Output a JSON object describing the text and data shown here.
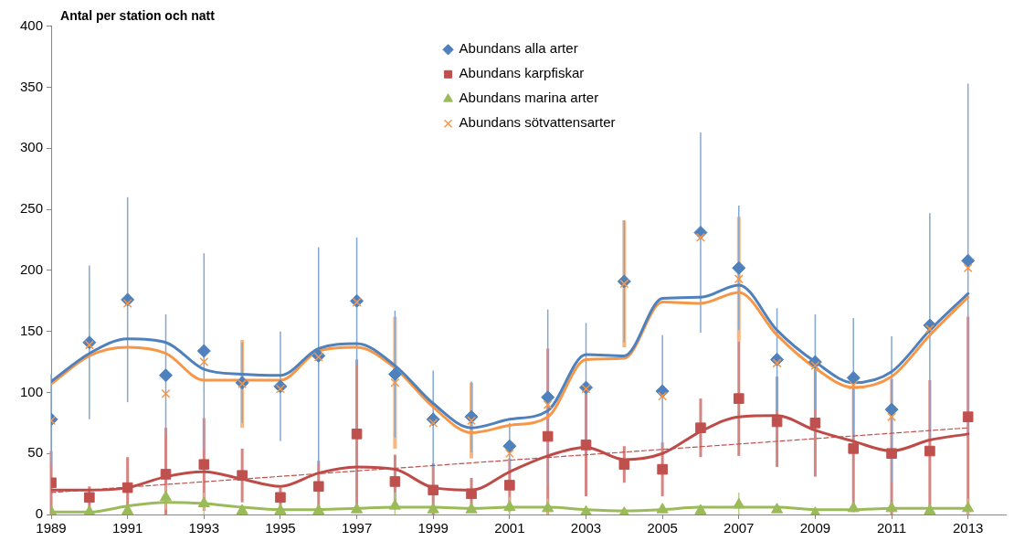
{
  "chart_data": {
    "type": "scatter",
    "title": "Antal per station och natt",
    "x": [
      1989,
      1990,
      1991,
      1992,
      1993,
      1994,
      1995,
      1996,
      1997,
      1998,
      1999,
      2000,
      2001,
      2002,
      2003,
      2004,
      2005,
      2006,
      2007,
      2008,
      2009,
      2010,
      2011,
      2012,
      2013
    ],
    "xlim": [
      1989,
      2014
    ],
    "xticks": [
      1989,
      1991,
      1993,
      1995,
      1997,
      1999,
      2001,
      2003,
      2005,
      2007,
      2009,
      2011,
      2013
    ],
    "ylim": [
      0,
      400
    ],
    "yticks": [
      0,
      50,
      100,
      150,
      200,
      250,
      300,
      350,
      400
    ],
    "legend": "top",
    "series": [
      {
        "name": "Abundans alla arter",
        "color": "#4f81bd",
        "marker": "diamond",
        "values": [
          78,
          141,
          176,
          114,
          134,
          108,
          105,
          130,
          175,
          115,
          78,
          80,
          56,
          96,
          104,
          191,
          101,
          231,
          202,
          127,
          125,
          112,
          86,
          155,
          208
        ],
        "errors": [
          37,
          63,
          84,
          50,
          80,
          33,
          45,
          89,
          52,
          52,
          40,
          29,
          19,
          72,
          53,
          50,
          46,
          82,
          51,
          42,
          39,
          49,
          60,
          92,
          145
        ]
      },
      {
        "name": "Abundans karpfiskar",
        "color": "#c0504d",
        "marker": "square",
        "values": [
          26,
          14,
          22,
          33,
          41,
          32,
          14,
          23,
          66,
          27,
          20,
          17,
          24,
          64,
          57,
          41,
          37,
          71,
          95,
          76,
          75,
          54,
          50,
          52,
          80
        ],
        "errors": [
          26,
          9,
          [
            0,
            47
          ],
          [
            0,
            71
          ],
          38,
          22,
          8,
          21,
          61,
          22,
          [
            0,
            42
          ],
          13,
          22,
          [
            0,
            136
          ],
          42,
          15,
          22,
          24,
          47,
          37,
          44,
          52,
          [
            0,
            111
          ],
          [
            0,
            110
          ],
          [
            0,
            162
          ]
        ]
      },
      {
        "name": "Abundans marina arter",
        "color": "#9bbb59",
        "marker": "triangle",
        "values": [
          2,
          2,
          3,
          14,
          9,
          3,
          3,
          3,
          4,
          7,
          4,
          4,
          6,
          5,
          2,
          1,
          4,
          3,
          8,
          4,
          1,
          5,
          5,
          3,
          5
        ],
        "errors": [
          null,
          null,
          null,
          10,
          9,
          null,
          null,
          null,
          null,
          [
            0,
            18
          ],
          null,
          null,
          [
            0,
            14
          ],
          [
            0,
            13
          ],
          null,
          null,
          null,
          null,
          [
            0,
            18
          ],
          null,
          null,
          null,
          null,
          null,
          [
            0,
            13
          ]
        ]
      },
      {
        "name": "Abundans sötvattensarter",
        "color": "#f79646",
        "marker": "cross",
        "values": [
          77,
          139,
          173,
          99,
          125,
          107,
          103,
          129,
          174,
          108,
          75,
          77,
          50,
          90,
          103,
          189,
          97,
          227,
          193,
          124,
          122,
          106,
          80,
          152,
          202
        ],
        "errors": [
          null,
          null,
          null,
          null,
          null,
          36,
          null,
          null,
          null,
          54,
          null,
          31,
          null,
          null,
          null,
          52,
          null,
          null,
          51,
          null,
          null,
          null,
          null,
          null,
          null
        ]
      },
      {
        "type": "line",
        "color": "#4f81bd",
        "marker": "none",
        "values": [
          109,
          132,
          144,
          141,
          119,
          115,
          114,
          136,
          140,
          122,
          91,
          71,
          78,
          85,
          131,
          130,
          177,
          178,
          188,
          151,
          125,
          108,
          117,
          151,
          181
        ]
      },
      {
        "type": "line",
        "color": "#be4b48",
        "marker": "none",
        "values": [
          20,
          20,
          22,
          31,
          35,
          29,
          23,
          34,
          39,
          37,
          22,
          20,
          35,
          48,
          55,
          45,
          50,
          68,
          80,
          81,
          69,
          60,
          52,
          61,
          66
        ]
      },
      {
        "type": "line",
        "color": "#9bbb59",
        "marker": "none",
        "values": [
          2,
          2,
          7,
          10,
          9,
          6,
          4,
          4,
          5,
          6,
          6,
          5,
          6,
          6,
          4,
          3,
          4,
          6,
          6,
          6,
          4,
          4,
          5,
          5,
          5
        ]
      },
      {
        "type": "line",
        "color": "#f79646",
        "marker": "none",
        "values": [
          107,
          130,
          137,
          132,
          110,
          110,
          110,
          134,
          137,
          120,
          88,
          67,
          73,
          80,
          127,
          128,
          174,
          173,
          182,
          147,
          120,
          104,
          113,
          147,
          178
        ]
      },
      {
        "type": "line",
        "color": "#c0504d",
        "marker": "none",
        "line_style": "dashed",
        "x": [
          1989,
          2013
        ],
        "values": [
          18,
          71
        ]
      }
    ]
  }
}
